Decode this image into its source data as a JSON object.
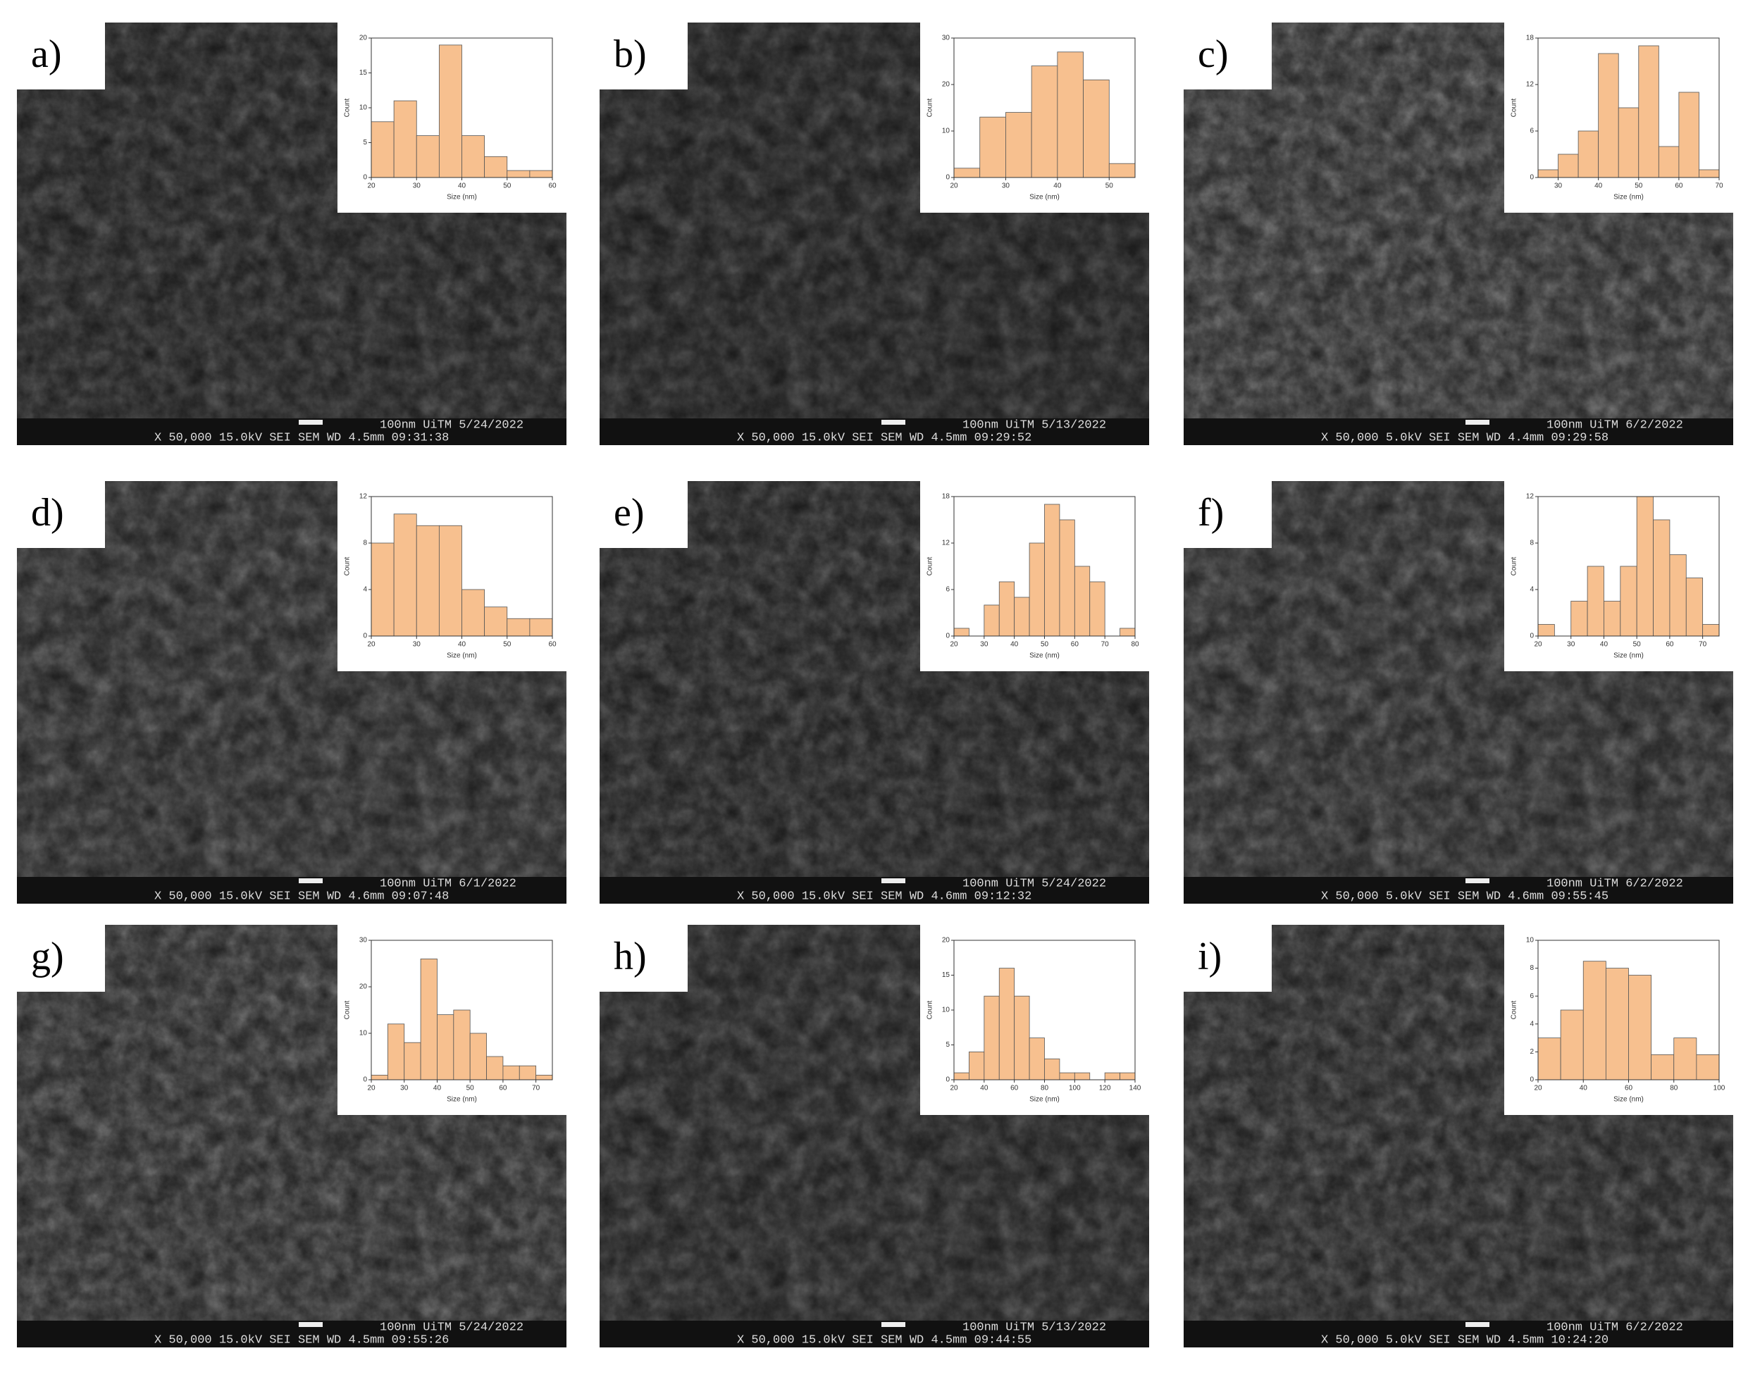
{
  "panels": [
    {
      "label": "a)",
      "info": {
        "top": "100nm UiTM 5/24/2022",
        "bottom": "X 50,000 15.0kV SEI SEM WD 4.5mm 09:31:38"
      }
    },
    {
      "label": "b)",
      "info": {
        "top": "100nm UiTM 5/13/2022",
        "bottom": "X 50,000 15.0kV SEI SEM WD 4.5mm 09:29:52"
      }
    },
    {
      "label": "c)",
      "info": {
        "top": "100nm UiTM 6/2/2022",
        "bottom": "X 50,000 5.0kV SEI SEM WD 4.4mm 09:29:58"
      }
    },
    {
      "label": "d)",
      "info": {
        "top": "100nm UiTM 6/1/2022",
        "bottom": "X 50,000 15.0kV SEI SEM WD 4.6mm 09:07:48"
      }
    },
    {
      "label": "e)",
      "info": {
        "top": "100nm UiTM 5/24/2022",
        "bottom": "X 50,000 15.0kV SEI SEM WD 4.6mm 09:12:32"
      }
    },
    {
      "label": "f)",
      "info": {
        "top": "100nm UiTM 6/2/2022",
        "bottom": "X 50,000 5.0kV SEI SEM WD 4.6mm 09:55:45"
      }
    },
    {
      "label": "g)",
      "info": {
        "top": "100nm UiTM 5/24/2022",
        "bottom": "X 50,000 15.0kV SEI SEM WD 4.5mm 09:55:26"
      }
    },
    {
      "label": "h)",
      "info": {
        "top": "100nm UiTM 5/13/2022",
        "bottom": "X 50,000 15.0kV SEI SEM WD 4.5mm 09:44:55"
      }
    },
    {
      "label": "i)",
      "info": {
        "top": "100nm UiTM 6/2/2022",
        "bottom": "X 50,000 5.0kV SEI SEM WD 4.5mm 10:24:20"
      }
    }
  ],
  "chart_data": [
    {
      "type": "histogram",
      "x_label": "Size (nm)",
      "y_label": "Count",
      "color": "#f7c08f",
      "bins": [
        20,
        25,
        30,
        35,
        40,
        45,
        50,
        55,
        60
      ],
      "values": [
        8,
        11,
        6,
        19,
        6,
        3,
        1,
        1
      ],
      "xlim": [
        20,
        60
      ],
      "xticks": [
        20,
        30,
        40,
        50,
        60
      ],
      "ylim": [
        0,
        20
      ],
      "yticks": [
        0,
        5,
        10,
        15,
        20
      ]
    },
    {
      "type": "histogram",
      "x_label": "Size (nm)",
      "y_label": "Count",
      "color": "#f7c08f",
      "bins": [
        20,
        25,
        30,
        35,
        40,
        45,
        50,
        55
      ],
      "values": [
        2,
        13,
        14,
        24,
        27,
        21,
        3
      ],
      "xlim": [
        20,
        55
      ],
      "xticks": [
        20,
        30,
        40,
        50
      ],
      "ylim": [
        0,
        30
      ],
      "yticks": [
        0,
        10,
        20,
        30
      ]
    },
    {
      "type": "histogram",
      "x_label": "Size (nm)",
      "y_label": "Count",
      "color": "#f7c08f",
      "bins": [
        25,
        30,
        35,
        40,
        45,
        50,
        55,
        60,
        65,
        70
      ],
      "values": [
        1,
        3,
        6,
        16,
        9,
        17,
        4,
        11,
        1
      ],
      "xlim": [
        25,
        70
      ],
      "xticks": [
        30,
        40,
        50,
        60,
        70
      ],
      "ylim": [
        0,
        18
      ],
      "yticks": [
        0,
        6,
        12,
        18
      ]
    },
    {
      "type": "histogram",
      "x_label": "Size (nm)",
      "y_label": "Count",
      "color": "#f7c08f",
      "bins": [
        20,
        25,
        30,
        35,
        40,
        45,
        50,
        55,
        60
      ],
      "values": [
        8,
        10.5,
        9.5,
        9.5,
        4,
        2.5,
        1.5,
        1.5
      ],
      "xlim": [
        20,
        60
      ],
      "xticks": [
        20,
        30,
        40,
        50,
        60
      ],
      "ylim": [
        0,
        12
      ],
      "yticks": [
        0,
        4,
        8,
        12
      ]
    },
    {
      "type": "histogram",
      "x_label": "Size (nm)",
      "y_label": "Count",
      "color": "#f7c08f",
      "bins": [
        20,
        25,
        30,
        35,
        40,
        45,
        50,
        55,
        60,
        65,
        70,
        75,
        80
      ],
      "values": [
        1,
        0,
        4,
        7,
        5,
        12,
        17,
        15,
        9,
        7,
        0,
        1
      ],
      "xlim": [
        20,
        80
      ],
      "xticks": [
        20,
        30,
        40,
        50,
        60,
        70,
        80
      ],
      "ylim": [
        0,
        18
      ],
      "yticks": [
        0,
        6,
        12,
        18
      ]
    },
    {
      "type": "histogram",
      "x_label": "Size (nm)",
      "y_label": "Count",
      "color": "#f7c08f",
      "bins": [
        20,
        25,
        30,
        35,
        40,
        45,
        50,
        55,
        60,
        65,
        70,
        75
      ],
      "values": [
        1,
        0,
        3,
        6,
        3,
        6,
        12,
        10,
        7,
        5,
        1
      ],
      "xlim": [
        20,
        75
      ],
      "xticks": [
        20,
        30,
        40,
        50,
        60,
        70
      ],
      "ylim": [
        0,
        12
      ],
      "yticks": [
        0,
        4,
        8,
        12
      ]
    },
    {
      "type": "histogram",
      "x_label": "Size (nm)",
      "y_label": "Count",
      "color": "#f7c08f",
      "bins": [
        20,
        25,
        30,
        35,
        40,
        45,
        50,
        55,
        60,
        65,
        70,
        75
      ],
      "values": [
        1,
        12,
        8,
        26,
        14,
        15,
        10,
        5,
        3,
        3,
        1
      ],
      "xlim": [
        20,
        75
      ],
      "xticks": [
        20,
        30,
        40,
        50,
        60,
        70
      ],
      "ylim": [
        0,
        30
      ],
      "yticks": [
        0,
        10,
        20,
        30
      ]
    },
    {
      "type": "histogram",
      "x_label": "Size (nm)",
      "y_label": "Count",
      "color": "#f7c08f",
      "bins": [
        20,
        30,
        40,
        50,
        60,
        70,
        80,
        90,
        100,
        110,
        120,
        130,
        140
      ],
      "values": [
        1,
        4,
        12,
        16,
        12,
        6,
        3,
        1,
        1,
        0,
        1,
        1
      ],
      "xlim": [
        20,
        140
      ],
      "xticks": [
        20,
        40,
        60,
        80,
        100,
        120,
        140
      ],
      "ylim": [
        0,
        20
      ],
      "yticks": [
        0,
        5,
        10,
        15,
        20
      ]
    },
    {
      "type": "histogram",
      "x_label": "Size (nm)",
      "y_label": "Count",
      "color": "#f7c08f",
      "bins": [
        20,
        30,
        40,
        50,
        60,
        70,
        80,
        90,
        100
      ],
      "values": [
        3,
        5,
        8.5,
        8,
        7.5,
        1.8,
        3,
        1.8
      ],
      "xlim": [
        20,
        100
      ],
      "xticks": [
        20,
        40,
        60,
        80,
        100
      ],
      "ylim": [
        0,
        10
      ],
      "yticks": [
        0,
        2,
        4,
        6,
        8,
        10
      ]
    }
  ]
}
